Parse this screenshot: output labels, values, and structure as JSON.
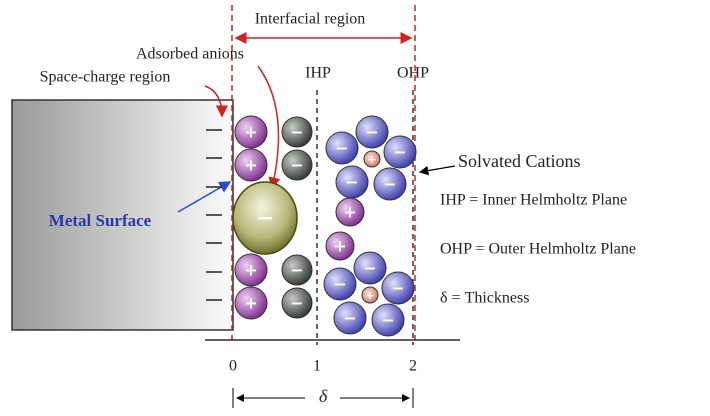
{
  "labels": {
    "interfacial_region": "Interfacial region",
    "adsorbed_anions": "Adsorbed anions",
    "space_charge_region": "Space-charge region",
    "ihp": "IHP",
    "ohp": "OHP",
    "metal_surface": "Metal Surface",
    "solvated_cations": "Solvated Cations"
  },
  "legend": [
    "IHP =  Inner Helmholtz Plane",
    "OHP = Outer Helmholtz Plane",
    "δ = Thickness"
  ],
  "axis": {
    "ticks": [
      "0",
      "1",
      "2"
    ],
    "thickness_symbol": "δ"
  },
  "signs": {
    "plus": "+",
    "minus": "−"
  }
}
